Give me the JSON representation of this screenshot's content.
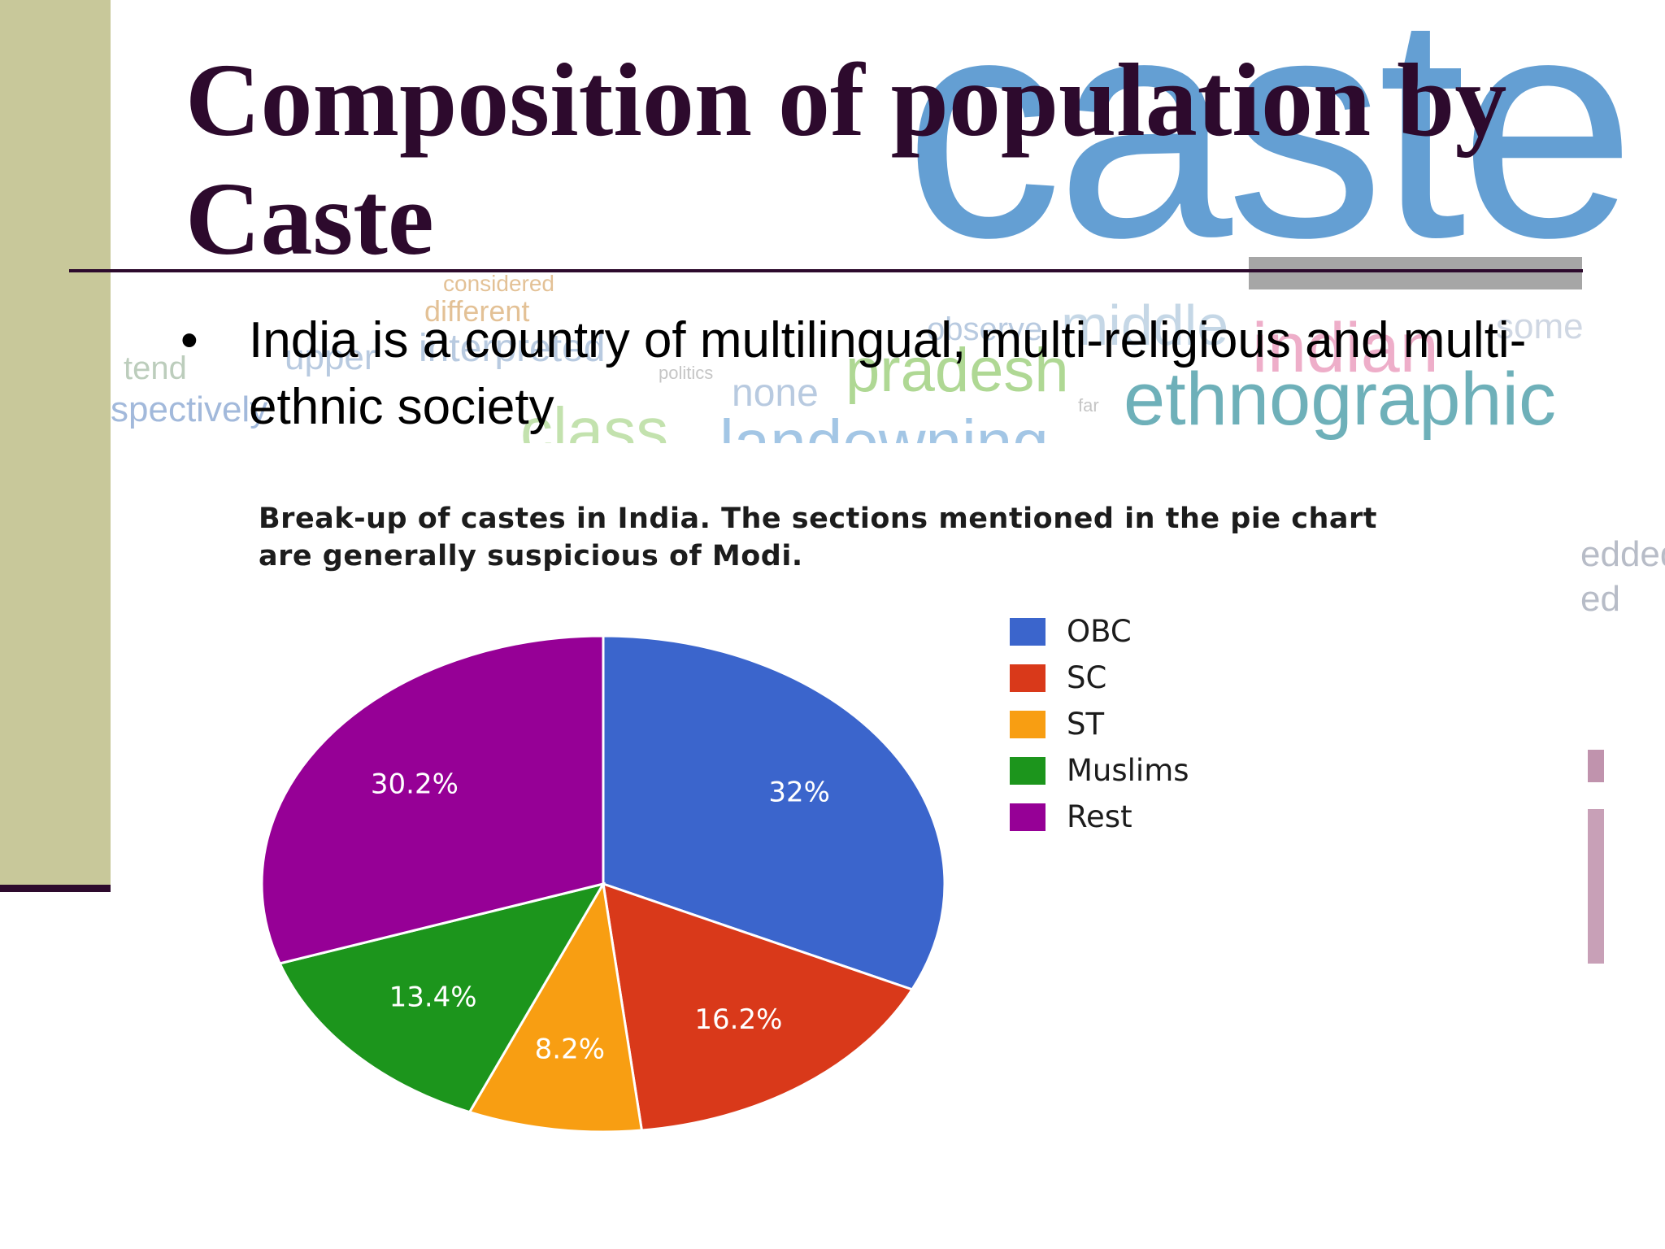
{
  "slide": {
    "title": "Composition of population by Caste",
    "bullets": [
      {
        "marker": "•",
        "text": "India is a country of multilingual, multi-religious and multi-ethnic society"
      }
    ]
  },
  "background_words": [
    "caste",
    "ethnographic",
    "pradesh",
    "indian",
    "middle",
    "considered",
    "different",
    "upper",
    "interpreted",
    "tend",
    "spectively",
    "observe",
    "none",
    "some",
    "politics",
    "far",
    "class",
    "landowning",
    "edded",
    "ed"
  ],
  "colors": {
    "title": "#2d0a2d",
    "sidebar": "#c8c89a",
    "accent_rule": "#2d0a2d",
    "obc": "#3b65cc",
    "sc": "#d9391a",
    "st": "#f89e12",
    "muslims": "#1c951c",
    "rest": "#960096"
  },
  "chart_data": {
    "type": "pie",
    "title": "Break-up of castes in India. The sections mentioned in the pie chart are generally suspicious of Modi.",
    "legend_position": "right",
    "labels": [
      "OBC",
      "SC",
      "ST",
      "Muslims",
      "Rest"
    ],
    "values": [
      32,
      16.2,
      8.2,
      13.4,
      30.2
    ],
    "value_labels": [
      "32%",
      "16.2%",
      "8.2%",
      "13.4%",
      "30.2%"
    ],
    "colors": [
      "#3b65cc",
      "#d9391a",
      "#f89e12",
      "#1c951c",
      "#960096"
    ]
  }
}
